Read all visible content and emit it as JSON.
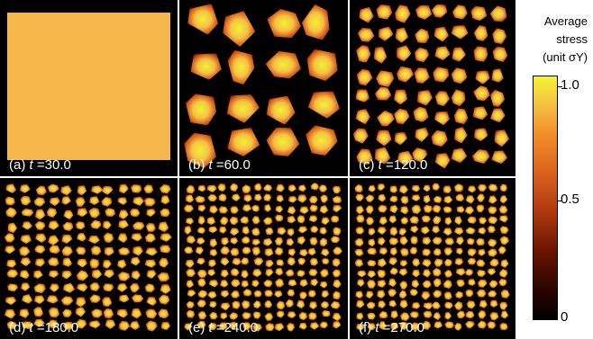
{
  "panels": [
    {
      "caption_prefix": "(a) ",
      "var": "t",
      "caption_value": " =30.0"
    },
    {
      "caption_prefix": "(b) ",
      "var": "t",
      "caption_value": " =60.0"
    },
    {
      "caption_prefix": "(c) ",
      "var": "t",
      "caption_value": " =120.0"
    },
    {
      "caption_prefix": "(d) ",
      "var": "t",
      "caption_value": " =180.0"
    },
    {
      "caption_prefix": "(e) ",
      "var": "t",
      "caption_value": " =240.0"
    },
    {
      "caption_prefix": "(f) ",
      "var": "t",
      "caption_value": " =270.0"
    }
  ],
  "colorbar": {
    "title_line1": "Average",
    "title_line2": "stress",
    "title_line3": "(unit σY)",
    "tick_top": "1.0",
    "tick_mid": "0.5",
    "tick_bottom": "0",
    "colors": [
      "#000000",
      "#6a1400",
      "#d9621e",
      "#f6c044",
      "#f2f230"
    ]
  }
}
